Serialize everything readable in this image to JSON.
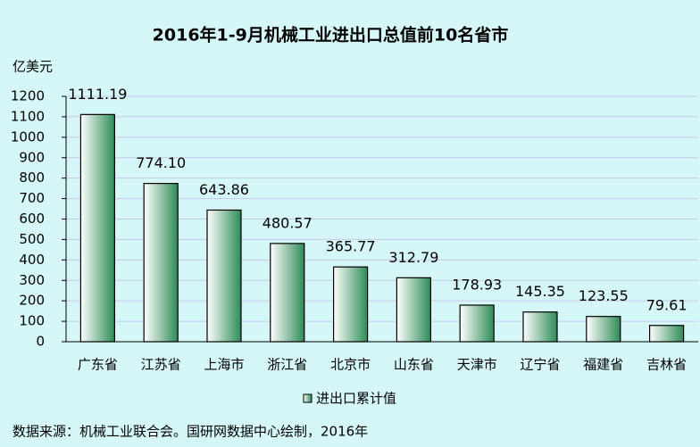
{
  "chart_data": {
    "type": "bar",
    "title": "2016年1-9月机械工业进出口总值前10名省市",
    "y_axis_label": "亿美元",
    "categories": [
      "广东省",
      "江苏省",
      "上海市",
      "浙江省",
      "北京市",
      "山东省",
      "天津市",
      "辽宁省",
      "福建省",
      "吉林省"
    ],
    "series": [
      {
        "name": "进出口累计值",
        "color": "#2e8b57",
        "values": [
          1111.19,
          774.1,
          643.86,
          480.57,
          365.77,
          312.79,
          178.93,
          145.35,
          123.55,
          79.61
        ],
        "value_labels": [
          "1111.19",
          "774.10",
          "643.86",
          "480.57",
          "365.77",
          "312.79",
          "178.93",
          "145.35",
          "123.55",
          "79.61"
        ]
      }
    ],
    "ylim": [
      0,
      1200
    ],
    "yticks": [
      0,
      100,
      200,
      300,
      400,
      500,
      600,
      700,
      800,
      900,
      1000,
      1100,
      1200
    ],
    "grid": true,
    "legend": "bottom",
    "source": "数据来源：机械工业联合会。国研网数据中心绘制，2016年"
  }
}
